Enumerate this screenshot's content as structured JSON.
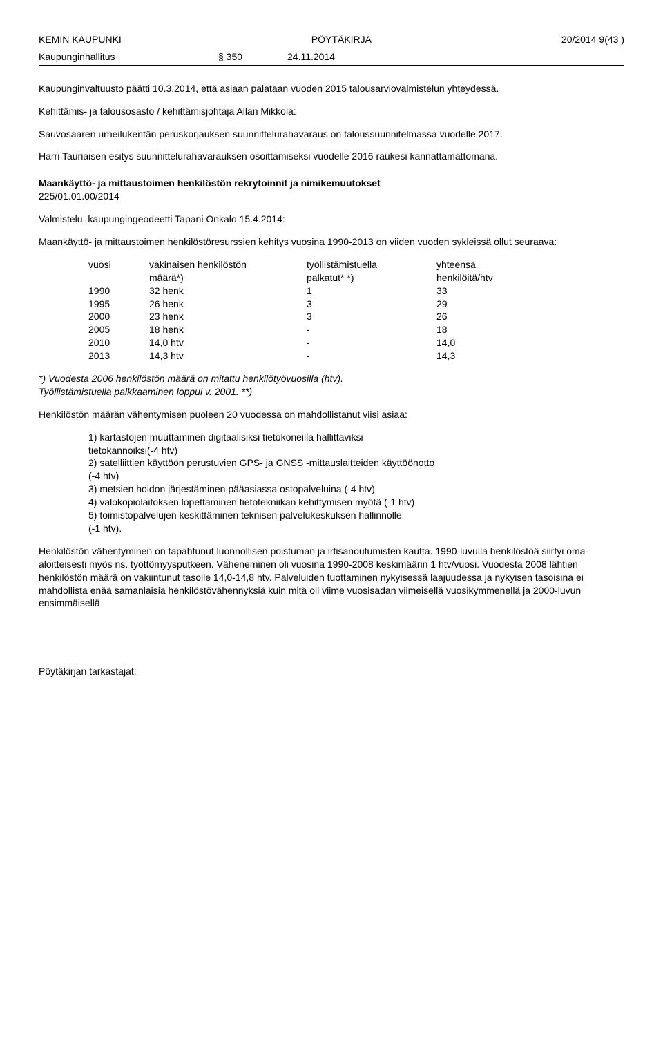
{
  "header": {
    "org": "KEMIN KAUPUNKI",
    "doctype": "PÖYTÄKIRJA",
    "docnum": "20/2014  9(43 )",
    "body": "Kaupunginhallitus",
    "section": "§ 350",
    "date": "24.11.2014"
  },
  "block1": {
    "p1": "Kaupunginvaltuusto päätti 10.3.2014, että asiaan palataan vuoden 2015 talousarviovalmistelun yhteydessä.",
    "p2": "Kehittämis- ja talousosasto / kehittämisjohtaja Allan Mikkola:",
    "p3": "Sauvosaaren urheilukentän peruskorjauksen suunnittelurahavaraus on taloussuunnitelmassa vuodelle 2017.",
    "p4": "Harri Tauriaisen esitys suunnittelurahavarauksen osoittamiseksi vuodelle 2016 raukesi kannattamattomana."
  },
  "sectionTitle": "Maankäyttö- ja mittaustoimen henkilöstön rekrytoinnit ja nimikemuutokset",
  "diar": "225/01.01.00/2014",
  "prep": "Valmistelu: kaupungingeodeetti Tapani Onkalo 15.4.2014:",
  "p5": "Maankäyttö- ja mittaustoimen henkilöstöresurssien kehitys vuosina 1990-2013 on viiden vuoden sykleissä ollut seuraava:",
  "table": {
    "head": {
      "y": "vuosi",
      "a1": "vakinaisen henkilöstön",
      "a2": "määrä*)",
      "b1": "työllistämistuella",
      "b2": "palkatut* *)",
      "c1": "yhteensä",
      "c2": "henkilöitä/htv"
    },
    "rows": [
      {
        "y": "1990",
        "a": "32 henk",
        "b": "1",
        "c": "33"
      },
      {
        "y": "1995",
        "a": "26 henk",
        "b": "3",
        "c": "29"
      },
      {
        "y": "2000",
        "a": "23 henk",
        "b": "3",
        "c": "26"
      },
      {
        "y": "2005",
        "a": "18 henk",
        "b": "-",
        "c": "18"
      },
      {
        "y": "2010",
        "a": "14,0 htv",
        "b": "-",
        "c": "14,0"
      },
      {
        "y": "2013",
        "a": "14,3 htv",
        "b": "-",
        "c": "14,3"
      }
    ]
  },
  "note1": "*) Vuodesta 2006 henkilöstön määrä on mitattu henkilötyövuosilla (htv).",
  "note2": " Työllistämistuella palkkaaminen loppui v. 2001. **)",
  "p6": "Henkilöstön määrän vähentymisen puoleen 20 vuodessa on mahdollistanut viisi asiaa:",
  "list": {
    "i1a": "1) kartastojen muuttaminen digitaalisiksi tietokoneilla hallittaviksi",
    "i1b": "tietokannoiksi(-4 htv)",
    "i2a": "2) satelliittien käyttöön perustuvien GPS- ja GNSS -mittauslaitteiden käyttöönotto",
    "i2b": "(-4 htv)",
    "i3": "3) metsien hoidon järjestäminen pääasiassa ostopalveluina (-4 htv)",
    "i4": "4) valokopiolaitoksen lopettaminen tietotekniikan kehittymisen myötä (-1 htv)",
    "i5a": "5) toimistopalvelujen keskittäminen teknisen palvelukeskuksen hallinnolle",
    "i5b": "(-1 htv)."
  },
  "p7": "Henkilöstön vähentyminen on tapahtunut luonnollisen poistuman ja irtisanoutumisten kautta. 1990-luvulla henkilöstöä siirtyi oma-aloitteisesti myös ns. työttömyysputkeen. Väheneminen oli vuosina 1990-2008 keskimäärin 1 htv/vuosi. Vuodesta 2008 lähtien henkilöstön määrä on vakiintunut tasolle 14,0-14,8 htv. Palveluiden tuottaminen nykyisessä laajuudessa ja nykyisen tasoisina ei mahdollista enää samanlaisia henkilöstövähennyksiä kuin mitä oli viime vuosisadan viimeisellä vuosikymmenellä ja 2000-luvun ensimmäisellä",
  "footer": "Pöytäkirjan tarkastajat:"
}
